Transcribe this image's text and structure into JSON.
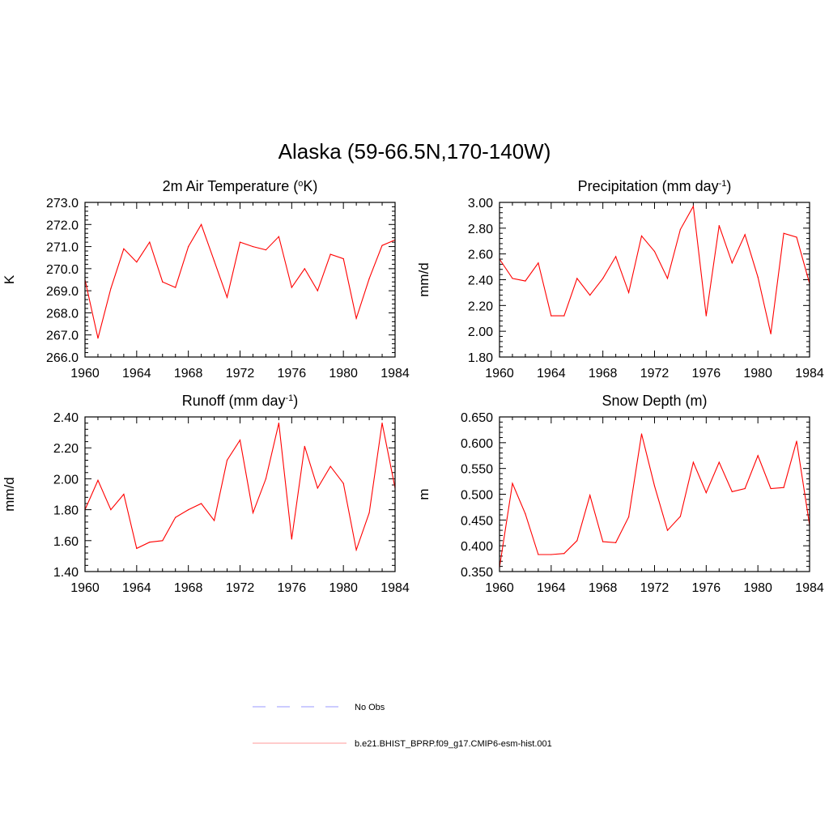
{
  "figure": {
    "title": "Alaska (59-66.5N,170-140W)"
  },
  "legend": [
    {
      "label": "No Obs",
      "color": "#9999ff",
      "dash": "dashed"
    },
    {
      "label": "b.e21.BHIST_BPRP.f09_g17.CMIP6-esm-hist.001",
      "color": "#ff0000",
      "dash": "solid"
    }
  ],
  "chart_data": [
    {
      "type": "line",
      "title_main": "2m Air Temperature (",
      "title_sup": "o",
      "title_end": "K)",
      "ylabel": "K",
      "xlim": [
        1960,
        1984
      ],
      "ylim": [
        266.0,
        273.0
      ],
      "xticks": [
        1960,
        1964,
        1968,
        1972,
        1976,
        1980,
        1984
      ],
      "yticks": [
        266.0,
        267.0,
        268.0,
        269.0,
        270.0,
        271.0,
        272.0,
        273.0
      ],
      "ydecimals": 1,
      "x": [
        1960,
        1961,
        1962,
        1963,
        1964,
        1965,
        1966,
        1967,
        1968,
        1969,
        1970,
        1971,
        1972,
        1973,
        1974,
        1975,
        1976,
        1977,
        1978,
        1979,
        1980,
        1981,
        1982,
        1983,
        1984
      ],
      "series": [
        {
          "name": "b.e21.BHIST_BPRP.f09_g17.CMIP6-esm-hist.001",
          "color": "#ff0000",
          "values": [
            269.5,
            266.85,
            269.1,
            270.9,
            270.3,
            271.2,
            269.4,
            269.15,
            271.0,
            272.0,
            270.35,
            268.7,
            271.2,
            271.0,
            270.85,
            271.45,
            269.15,
            270.0,
            269.0,
            270.65,
            270.45,
            267.75,
            269.55,
            271.05,
            271.3
          ]
        }
      ]
    },
    {
      "type": "line",
      "title_main": "Precipitation (mm day",
      "title_sup": "-1",
      "title_end": ")",
      "ylabel": "mm/d",
      "xlim": [
        1960,
        1984
      ],
      "ylim": [
        1.8,
        3.0
      ],
      "xticks": [
        1960,
        1964,
        1968,
        1972,
        1976,
        1980,
        1984
      ],
      "yticks": [
        1.8,
        2.0,
        2.2,
        2.4,
        2.6,
        2.8,
        3.0
      ],
      "ydecimals": 2,
      "x": [
        1960,
        1961,
        1962,
        1963,
        1964,
        1965,
        1966,
        1967,
        1968,
        1969,
        1970,
        1971,
        1972,
        1973,
        1974,
        1975,
        1976,
        1977,
        1978,
        1979,
        1980,
        1981,
        1982,
        1983,
        1984
      ],
      "series": [
        {
          "name": "b.e21.BHIST_BPRP.f09_g17.CMIP6-esm-hist.001",
          "color": "#ff0000",
          "values": [
            2.56,
            2.41,
            2.39,
            2.53,
            2.12,
            2.12,
            2.41,
            2.28,
            2.41,
            2.58,
            2.3,
            2.74,
            2.62,
            2.41,
            2.79,
            2.97,
            2.12,
            2.82,
            2.53,
            2.75,
            2.42,
            1.98,
            2.76,
            2.73,
            2.37
          ]
        }
      ]
    },
    {
      "type": "line",
      "title_main": "Runoff (mm day",
      "title_sup": "-1",
      "title_end": ")",
      "ylabel": "mm/d",
      "xlim": [
        1960,
        1984
      ],
      "ylim": [
        1.4,
        2.4
      ],
      "xticks": [
        1960,
        1964,
        1968,
        1972,
        1976,
        1980,
        1984
      ],
      "yticks": [
        1.4,
        1.6,
        1.8,
        2.0,
        2.2,
        2.4
      ],
      "ydecimals": 2,
      "x": [
        1960,
        1961,
        1962,
        1963,
        1964,
        1965,
        1966,
        1967,
        1968,
        1969,
        1970,
        1971,
        1972,
        1973,
        1974,
        1975,
        1976,
        1977,
        1978,
        1979,
        1980,
        1981,
        1982,
        1983,
        1984
      ],
      "series": [
        {
          "name": "b.e21.BHIST_BPRP.f09_g17.CMIP6-esm-hist.001",
          "color": "#ff0000",
          "values": [
            1.8,
            1.99,
            1.8,
            1.9,
            1.55,
            1.59,
            1.6,
            1.75,
            1.8,
            1.84,
            1.73,
            2.12,
            2.25,
            1.78,
            2.0,
            2.36,
            1.61,
            2.21,
            1.94,
            2.08,
            1.97,
            1.54,
            1.78,
            2.36,
            1.94
          ]
        }
      ]
    },
    {
      "type": "line",
      "title_main": "Snow Depth (m)",
      "title_sup": "",
      "title_end": "",
      "ylabel": "m",
      "xlim": [
        1960,
        1984
      ],
      "ylim": [
        0.35,
        0.65
      ],
      "xticks": [
        1960,
        1964,
        1968,
        1972,
        1976,
        1980,
        1984
      ],
      "yticks": [
        0.35,
        0.4,
        0.45,
        0.5,
        0.55,
        0.6,
        0.65
      ],
      "ydecimals": 3,
      "x": [
        1960,
        1961,
        1962,
        1963,
        1964,
        1965,
        1966,
        1967,
        1968,
        1969,
        1970,
        1971,
        1972,
        1973,
        1974,
        1975,
        1976,
        1977,
        1978,
        1979,
        1980,
        1981,
        1982,
        1983,
        1984
      ],
      "series": [
        {
          "name": "b.e21.BHIST_BPRP.f09_g17.CMIP6-esm-hist.001",
          "color": "#ff0000",
          "values": [
            0.358,
            0.521,
            0.462,
            0.383,
            0.383,
            0.385,
            0.41,
            0.498,
            0.408,
            0.406,
            0.456,
            0.617,
            0.516,
            0.43,
            0.457,
            0.562,
            0.503,
            0.562,
            0.505,
            0.511,
            0.575,
            0.511,
            0.513,
            0.603,
            0.44
          ]
        }
      ]
    }
  ]
}
